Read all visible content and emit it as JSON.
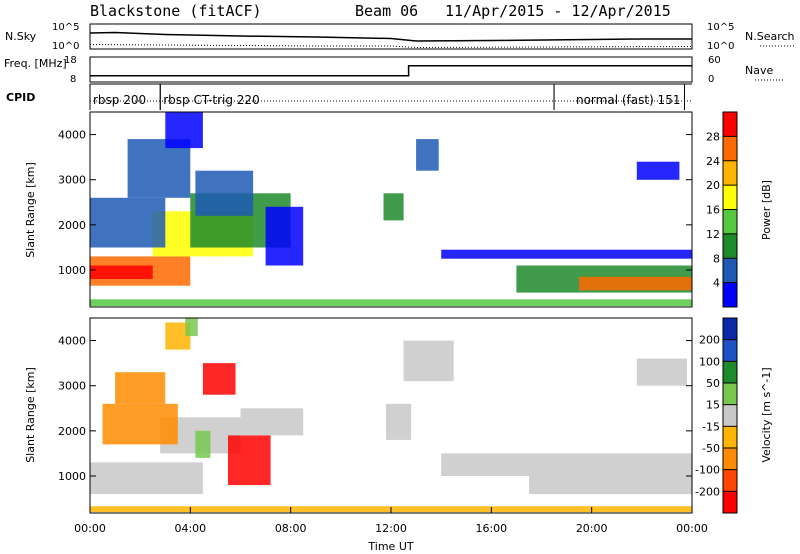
{
  "header": {
    "station": "Blackstone (fitACF)",
    "beam": "Beam 06",
    "date_range": "11/Apr/2015 - 12/Apr/2015"
  },
  "chart_data": [
    {
      "type": "line",
      "id": "noise",
      "left_label": "N.Sky",
      "right_label": "N.Search",
      "left_ticks": [
        "10^5",
        "10^0"
      ],
      "right_ticks": [
        "10^5",
        "10^0"
      ],
      "series": [
        {
          "name": "N.Sky",
          "style": "solid",
          "x": [
            0,
            1,
            3,
            6,
            9,
            12,
            13,
            16,
            20,
            22,
            24
          ],
          "y": [
            3.2,
            3.3,
            2.9,
            2.6,
            2.4,
            2.1,
            1.6,
            1.7,
            1.9,
            2.0,
            2.0
          ]
        },
        {
          "name": "N.Search",
          "style": "dotted",
          "x": [
            0,
            3,
            6,
            9,
            12,
            13,
            18,
            24
          ],
          "y": [
            0.9,
            0.8,
            0.7,
            0.6,
            0.6,
            0.3,
            0.4,
            0.5
          ]
        }
      ],
      "xlim": [
        0,
        24
      ],
      "ylim_log10": [
        0,
        5
      ]
    },
    {
      "type": "line",
      "id": "freq_nave",
      "left_label": "Freq. [MHz]",
      "right_label": "Nave",
      "left_ticks": [
        "18",
        "8"
      ],
      "right_ticks": [
        "60",
        "0"
      ],
      "series": [
        {
          "name": "Freq.",
          "style": "solid",
          "x": [
            0,
            12.7,
            12.7,
            24
          ],
          "y": [
            10.5,
            10.5,
            14.5,
            14.5
          ]
        },
        {
          "name": "Nave",
          "style": "dotted",
          "x": [
            0,
            24
          ],
          "y": [
            0,
            0
          ]
        }
      ],
      "xlim": [
        0,
        24
      ],
      "ylim": [
        8,
        18
      ]
    },
    {
      "type": "table",
      "id": "cpid",
      "label": "CPID",
      "segments": [
        {
          "start": 0,
          "end": 2.8,
          "label": "rbsp 200"
        },
        {
          "start": 2.8,
          "end": 18.5,
          "label": "rbsp CT-trig 220"
        },
        {
          "start": 18.5,
          "end": 23.7,
          "label": "normal (fast) 151"
        }
      ]
    },
    {
      "type": "heatmap",
      "id": "power",
      "ylabel": "Slant Range [km]",
      "yticks": [
        1000,
        2000,
        3000,
        4000
      ],
      "ylim": [
        180,
        4500
      ],
      "xlim": [
        0,
        24
      ],
      "colorbar": {
        "label": "Power [dB]",
        "ticks": [
          "28",
          "24",
          "20",
          "16",
          "12",
          "8",
          "4"
        ],
        "colors": [
          "#ff0000",
          "#ff6a00",
          "#ffb400",
          "#ffff00",
          "#55c840",
          "#1e8a2a",
          "#1e5ab4",
          "#0000ff"
        ]
      },
      "bands": [
        {
          "x0": 0.0,
          "x1": 4.0,
          "r0": 650,
          "r1": 1300,
          "color_index": 1
        },
        {
          "x0": 0.0,
          "x1": 2.5,
          "r0": 800,
          "r1": 1100,
          "color_index": 0
        },
        {
          "x0": 2.5,
          "x1": 6.5,
          "r0": 1300,
          "r1": 2300,
          "color_index": 3
        },
        {
          "x0": 4.0,
          "x1": 8.0,
          "r0": 1500,
          "r1": 2700,
          "color_index": 5
        },
        {
          "x0": 0.0,
          "x1": 3.0,
          "r0": 1500,
          "r1": 2600,
          "color_index": 6
        },
        {
          "x0": 1.5,
          "x1": 4.0,
          "r0": 2600,
          "r1": 3900,
          "color_index": 6
        },
        {
          "x0": 3.0,
          "x1": 4.5,
          "r0": 3700,
          "r1": 4500,
          "color_index": 7
        },
        {
          "x0": 4.2,
          "x1": 6.5,
          "r0": 2200,
          "r1": 3200,
          "color_index": 6
        },
        {
          "x0": 7.0,
          "x1": 8.5,
          "r0": 1100,
          "r1": 2400,
          "color_index": 7
        },
        {
          "x0": 11.7,
          "x1": 12.5,
          "r0": 2100,
          "r1": 2700,
          "color_index": 5
        },
        {
          "x0": 13.0,
          "x1": 13.9,
          "r0": 3200,
          "r1": 3900,
          "color_index": 6
        },
        {
          "x0": 14.0,
          "x1": 24.0,
          "r0": 1250,
          "r1": 1450,
          "color_index": 7
        },
        {
          "x0": 17.0,
          "x1": 24.0,
          "r0": 500,
          "r1": 1100,
          "color_index": 5
        },
        {
          "x0": 19.5,
          "x1": 24.0,
          "r0": 550,
          "r1": 850,
          "color_index": 1
        },
        {
          "x0": 21.8,
          "x1": 23.5,
          "r0": 3000,
          "r1": 3400,
          "color_index": 7
        },
        {
          "x0": 0.0,
          "x1": 24.0,
          "r0": 200,
          "r1": 350,
          "color_index": 4
        }
      ]
    },
    {
      "type": "heatmap",
      "id": "velocity",
      "ylabel": "Slant Range [km]",
      "yticks": [
        1000,
        2000,
        3000,
        4000
      ],
      "ylim": [
        180,
        4500
      ],
      "xlim": [
        0,
        24
      ],
      "xticks": [
        "00:00",
        "04:00",
        "08:00",
        "12:00",
        "16:00",
        "20:00",
        "00:00"
      ],
      "xlabel": "Time UT",
      "colorbar": {
        "label": "Velocity [m s^-1]",
        "ticks": [
          "200",
          "100",
          "50",
          "15",
          "-15",
          "-50",
          "-100",
          "-200"
        ],
        "colors": [
          "#0a28aa",
          "#1e50c8",
          "#1e8a2a",
          "#78c850",
          "#c8c8c8",
          "#ffb400",
          "#ff8c00",
          "#ff4600",
          "#ff0000"
        ]
      },
      "bands": [
        {
          "x0": 0.0,
          "x1": 4.5,
          "r0": 600,
          "r1": 1300,
          "color_index": 4
        },
        {
          "x0": 2.8,
          "x1": 6.0,
          "r0": 1500,
          "r1": 2300,
          "color_index": 4
        },
        {
          "x0": 0.5,
          "x1": 3.5,
          "r0": 1700,
          "r1": 2600,
          "color_index": 6
        },
        {
          "x0": 1.0,
          "x1": 3.0,
          "r0": 2600,
          "r1": 3300,
          "color_index": 6
        },
        {
          "x0": 3.0,
          "x1": 4.0,
          "r0": 3800,
          "r1": 4400,
          "color_index": 5
        },
        {
          "x0": 3.8,
          "x1": 4.3,
          "r0": 4100,
          "r1": 4500,
          "color_index": 3
        },
        {
          "x0": 4.5,
          "x1": 5.8,
          "r0": 2800,
          "r1": 3500,
          "color_index": 8
        },
        {
          "x0": 4.2,
          "x1": 4.8,
          "r0": 1400,
          "r1": 2000,
          "color_index": 3
        },
        {
          "x0": 5.5,
          "x1": 7.2,
          "r0": 800,
          "r1": 1900,
          "color_index": 8
        },
        {
          "x0": 6.0,
          "x1": 8.5,
          "r0": 1900,
          "r1": 2500,
          "color_index": 4
        },
        {
          "x0": 12.5,
          "x1": 14.5,
          "r0": 3100,
          "r1": 4000,
          "color_index": 4
        },
        {
          "x0": 11.8,
          "x1": 12.8,
          "r0": 1800,
          "r1": 2600,
          "color_index": 4
        },
        {
          "x0": 14.0,
          "x1": 24.0,
          "r0": 1000,
          "r1": 1500,
          "color_index": 4
        },
        {
          "x0": 17.5,
          "x1": 24.0,
          "r0": 600,
          "r1": 1000,
          "color_index": 4
        },
        {
          "x0": 21.8,
          "x1": 23.8,
          "r0": 3000,
          "r1": 3600,
          "color_index": 4
        },
        {
          "x0": 0.0,
          "x1": 24.0,
          "r0": 200,
          "r1": 330,
          "color_index": 5
        }
      ]
    }
  ]
}
